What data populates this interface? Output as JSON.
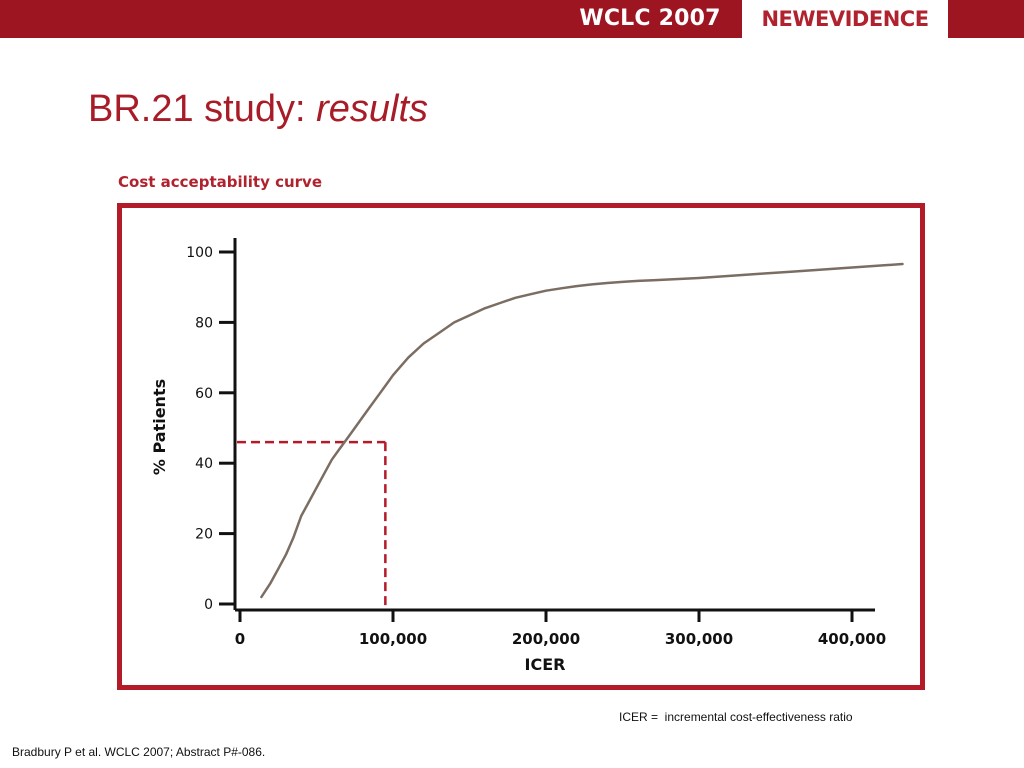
{
  "header": {
    "conference": "WCLC 2007",
    "logo": "NEWEVIDENCE",
    "bar_color": "#9e1522"
  },
  "slide": {
    "title": "BR.21 study:",
    "title_suffix": "results"
  },
  "chart_data": {
    "type": "line",
    "title": "Cost acceptability curve",
    "xlabel": "ICER",
    "ylabel": "% Patients",
    "xlim": [
      0,
      430000
    ],
    "ylim": [
      0,
      100
    ],
    "x_ticks": [
      0,
      100000,
      200000,
      300000,
      400000
    ],
    "x_tick_labels": [
      "0",
      "100,000",
      "200,000",
      "300,000",
      "400,000"
    ],
    "y_ticks": [
      0,
      20,
      40,
      60,
      80,
      100
    ],
    "y_tick_labels": [
      "0",
      "20",
      "40",
      "60",
      "80",
      "100"
    ],
    "grid": false,
    "legend": "none",
    "line_color": "#7b6d62",
    "frame_color": "#b31b29",
    "series": [
      {
        "x": [
          14000,
          20000,
          25000,
          30000,
          35000,
          40000,
          45000,
          50000,
          55000,
          60000,
          65000,
          70000,
          75000,
          80000,
          85000,
          90000,
          95000,
          100000,
          110000,
          120000,
          130000,
          140000,
          150000,
          160000,
          170000,
          180000,
          190000,
          200000,
          210000,
          220000,
          230000,
          240000,
          250000,
          260000,
          270000,
          280000,
          290000,
          300000,
          320000,
          340000,
          360000,
          380000,
          400000,
          420000,
          433000
        ],
        "y": [
          2,
          6,
          10,
          14,
          19,
          25,
          29,
          33,
          37,
          41,
          44,
          47,
          50,
          53,
          56,
          59,
          62,
          65,
          70,
          74,
          77,
          80,
          82,
          84,
          85.5,
          87,
          88,
          89,
          89.7,
          90.3,
          90.8,
          91.2,
          91.5,
          91.8,
          92,
          92.2,
          92.4,
          92.6,
          93.2,
          93.8,
          94.4,
          95,
          95.6,
          96.2,
          96.6
        ]
      }
    ],
    "reference": {
      "x": 95000,
      "y": 46,
      "style": "dashed",
      "color": "#b31b29"
    }
  },
  "footnote": "ICER =  incremental cost-effectiveness ratio",
  "citation": "Bradbury P et al. WCLC 2007; Abstract P#-086."
}
